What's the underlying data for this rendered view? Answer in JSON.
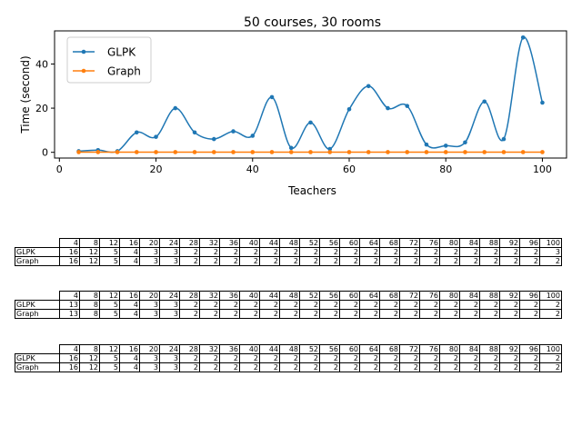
{
  "chart_data": {
    "type": "line",
    "title": "50 courses, 30 rooms",
    "xlabel": "Teachers",
    "ylabel": "Time (second)",
    "xlim": [
      -1,
      105
    ],
    "ylim": [
      -2.6,
      55
    ],
    "xticks": [
      0,
      20,
      40,
      60,
      80,
      100
    ],
    "yticks": [
      0,
      20,
      40
    ],
    "legend": "top-left",
    "grid": false,
    "x": [
      4,
      8,
      12,
      16,
      20,
      24,
      28,
      32,
      36,
      40,
      44,
      48,
      52,
      56,
      60,
      64,
      68,
      72,
      76,
      80,
      84,
      88,
      92,
      96,
      100
    ],
    "series": [
      {
        "name": "GLPK",
        "color": "#1f77b4",
        "values": [
          0.5,
          1.0,
          0.5,
          9.0,
          7.0,
          20.0,
          9.0,
          6.0,
          9.5,
          7.5,
          25.0,
          2.0,
          13.5,
          1.5,
          19.5,
          30.0,
          20.0,
          21.0,
          3.5,
          3.0,
          4.5,
          23.0,
          6.0,
          52.0,
          22.5
        ]
      },
      {
        "name": "Graph",
        "color": "#ff7f0e",
        "values": [
          0.1,
          0.1,
          0.1,
          0.1,
          0.1,
          0.1,
          0.1,
          0.1,
          0.1,
          0.1,
          0.1,
          0.1,
          0.1,
          0.1,
          0.1,
          0.1,
          0.1,
          0.1,
          0.1,
          0.1,
          0.1,
          0.1,
          0.1,
          0.1,
          0.1
        ]
      }
    ]
  },
  "tables": [
    {
      "header": [
        "4",
        "8",
        "12",
        "16",
        "20",
        "24",
        "28",
        "32",
        "36",
        "40",
        "44",
        "48",
        "52",
        "56",
        "60",
        "64",
        "68",
        "72",
        "76",
        "80",
        "84",
        "88",
        "92",
        "96",
        "100"
      ],
      "rows": [
        {
          "label": "GLPK",
          "cells": [
            "16",
            "12",
            "5",
            "4",
            "3",
            "3",
            "2",
            "2",
            "2",
            "2",
            "2",
            "2",
            "2",
            "2",
            "2",
            "2",
            "2",
            "2",
            "2",
            "2",
            "2",
            "2",
            "2",
            "2",
            "3"
          ]
        },
        {
          "label": "Graph",
          "cells": [
            "16",
            "12",
            "5",
            "4",
            "3",
            "3",
            "2",
            "2",
            "2",
            "2",
            "2",
            "2",
            "2",
            "2",
            "2",
            "2",
            "2",
            "2",
            "2",
            "2",
            "2",
            "2",
            "2",
            "2",
            "2"
          ]
        }
      ]
    },
    {
      "header": [
        "4",
        "8",
        "12",
        "16",
        "20",
        "24",
        "28",
        "32",
        "36",
        "40",
        "44",
        "48",
        "52",
        "56",
        "60",
        "64",
        "68",
        "72",
        "76",
        "80",
        "84",
        "88",
        "92",
        "96",
        "100"
      ],
      "rows": [
        {
          "label": "GLPK",
          "cells": [
            "13",
            "8",
            "5",
            "4",
            "3",
            "3",
            "2",
            "2",
            "2",
            "2",
            "2",
            "2",
            "2",
            "2",
            "2",
            "2",
            "2",
            "2",
            "2",
            "2",
            "2",
            "2",
            "2",
            "2",
            "2"
          ]
        },
        {
          "label": "Graph",
          "cells": [
            "13",
            "8",
            "5",
            "4",
            "3",
            "3",
            "2",
            "2",
            "2",
            "2",
            "2",
            "2",
            "2",
            "2",
            "2",
            "2",
            "2",
            "2",
            "2",
            "2",
            "2",
            "2",
            "2",
            "2",
            "2"
          ]
        }
      ]
    },
    {
      "header": [
        "4",
        "8",
        "12",
        "16",
        "20",
        "24",
        "28",
        "32",
        "36",
        "40",
        "44",
        "48",
        "52",
        "56",
        "60",
        "64",
        "68",
        "72",
        "76",
        "80",
        "84",
        "88",
        "92",
        "96",
        "100"
      ],
      "rows": [
        {
          "label": "GLPK",
          "cells": [
            "16",
            "12",
            "5",
            "4",
            "3",
            "3",
            "2",
            "2",
            "2",
            "2",
            "2",
            "2",
            "2",
            "2",
            "2",
            "2",
            "2",
            "2",
            "2",
            "2",
            "2",
            "2",
            "2",
            "2",
            "2"
          ]
        },
        {
          "label": "Graph",
          "cells": [
            "16",
            "12",
            "5",
            "4",
            "3",
            "3",
            "2",
            "2",
            "2",
            "2",
            "2",
            "2",
            "2",
            "2",
            "2",
            "2",
            "2",
            "2",
            "2",
            "2",
            "2",
            "2",
            "2",
            "2",
            "2"
          ]
        }
      ]
    }
  ]
}
